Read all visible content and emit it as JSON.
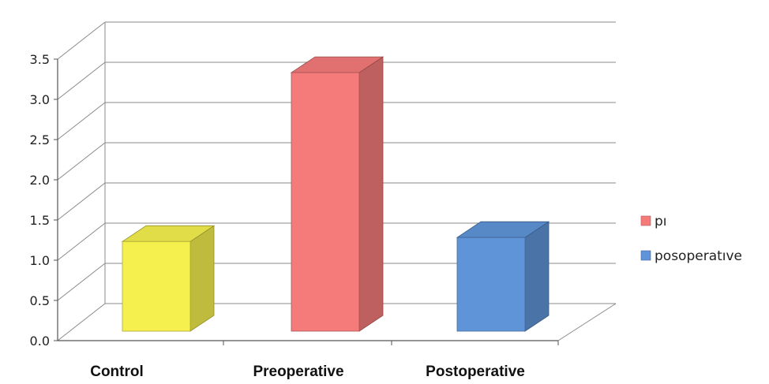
{
  "chart_data": {
    "type": "bar",
    "style": "3d",
    "categories": [
      "Control",
      "Preoperative",
      "Postoperative"
    ],
    "values": [
      1.35,
      3.45,
      1.4
    ],
    "colors": [
      "#f5f04e",
      "#f47b7a",
      "#5f95d8"
    ],
    "ylim": [
      0,
      3.5
    ],
    "yticks": [
      "0.0",
      "0.5",
      "1.0",
      "1.5",
      "2.0",
      "2.5",
      "3.0",
      "3.5"
    ],
    "grid": true,
    "legend_position": "right",
    "legend": [
      {
        "label": "pı",
        "color": "#f47b7a"
      },
      {
        "label": "posoperatıve",
        "color": "#5f95d8"
      }
    ],
    "title": "",
    "xlabel": "",
    "ylabel": ""
  }
}
